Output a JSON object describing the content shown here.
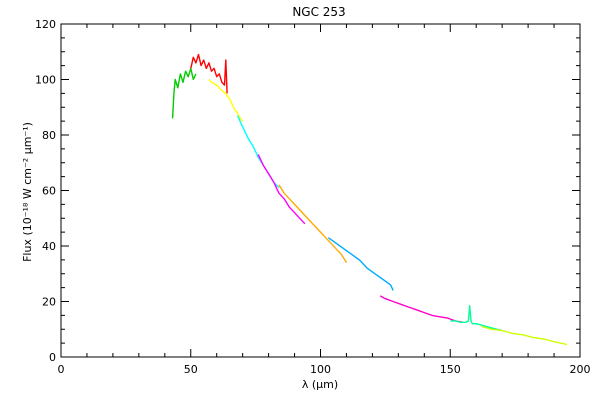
{
  "chart_data": {
    "type": "line",
    "title": "NGC 253",
    "xlabel": "λ (μm)",
    "ylabel": "Flux (10⁻¹⁸ W cm⁻² μm⁻¹)",
    "xlim": [
      0,
      200
    ],
    "ylim": [
      0,
      120
    ],
    "x_ticks": [
      0,
      50,
      100,
      150,
      200
    ],
    "y_ticks": [
      0,
      20,
      40,
      60,
      80,
      100,
      120
    ],
    "x_tick_labels": [
      "0",
      "50",
      "100",
      "150",
      "200"
    ],
    "y_tick_labels": [
      "0",
      "20",
      "40",
      "60",
      "80",
      "100",
      "120"
    ],
    "grid": false,
    "series": [
      {
        "color": "#00cc00",
        "x": [
          43,
          43.5,
          44,
          45,
          46,
          47,
          48,
          49,
          50,
          51,
          52
        ],
        "y": [
          86,
          95,
          100,
          97,
          102,
          99,
          103,
          101,
          104,
          100,
          102
        ]
      },
      {
        "color": "#ff0000",
        "x": [
          50,
          51,
          52,
          53,
          54,
          55,
          56,
          57,
          58,
          59,
          60,
          61,
          62,
          63,
          63.5,
          64
        ],
        "y": [
          104,
          108,
          106,
          109,
          105,
          107,
          104,
          106,
          103,
          104,
          101,
          102,
          99,
          98,
          107,
          95
        ]
      },
      {
        "color": "#ffff00",
        "x": [
          57,
          58,
          60,
          62,
          63.5,
          64,
          65,
          66,
          67,
          68,
          69,
          70
        ],
        "y": [
          100,
          99,
          98,
          96,
          95,
          94,
          93,
          91,
          89,
          88,
          86,
          85
        ]
      },
      {
        "color": "#00ffff",
        "x": [
          68,
          70,
          72,
          74,
          76,
          78,
          80,
          82,
          84
        ],
        "y": [
          87,
          83,
          79,
          76,
          72,
          69,
          66,
          63,
          61
        ]
      },
      {
        "color": "#ff00ff",
        "x": [
          76,
          78,
          80,
          82,
          84,
          86,
          88,
          90,
          92,
          94
        ],
        "y": [
          73,
          69,
          66,
          63,
          59,
          57,
          54,
          52,
          50,
          48
        ]
      },
      {
        "color": "#ffaa00",
        "x": [
          84,
          86,
          88,
          90,
          92,
          94,
          96,
          98,
          100,
          102,
          104,
          106,
          108,
          110
        ],
        "y": [
          62,
          59,
          57,
          55,
          53,
          51,
          49,
          47,
          45,
          43,
          41,
          39,
          37,
          34
        ]
      },
      {
        "color": "#00aaff",
        "x": [
          103,
          106,
          109,
          112,
          115,
          118,
          121,
          124,
          127,
          128
        ],
        "y": [
          43,
          41,
          39,
          37,
          35,
          32,
          30,
          28,
          26,
          24
        ]
      },
      {
        "color": "#ff00cc",
        "x": [
          123,
          125,
          128,
          131,
          134,
          137,
          140,
          143,
          146,
          149,
          152,
          155
        ],
        "y": [
          22,
          21,
          20,
          19,
          18,
          17,
          16,
          15,
          14.5,
          14,
          13,
          12.5
        ]
      },
      {
        "color": "#00ff99",
        "x": [
          150,
          152,
          154,
          155,
          156,
          157,
          157.5,
          158,
          158.5,
          159,
          160,
          162,
          164,
          166,
          168,
          170
        ],
        "y": [
          13,
          13,
          12.5,
          12.5,
          12.5,
          13,
          18.5,
          13,
          12,
          12,
          12,
          11.5,
          11,
          10.5,
          10,
          9.5
        ]
      },
      {
        "color": "#ccff00",
        "x": [
          162,
          166,
          170,
          174,
          178,
          182,
          186,
          190,
          195
        ],
        "y": [
          11,
          10,
          9.5,
          8.5,
          8,
          7,
          6.5,
          5.5,
          4.5
        ]
      }
    ]
  }
}
